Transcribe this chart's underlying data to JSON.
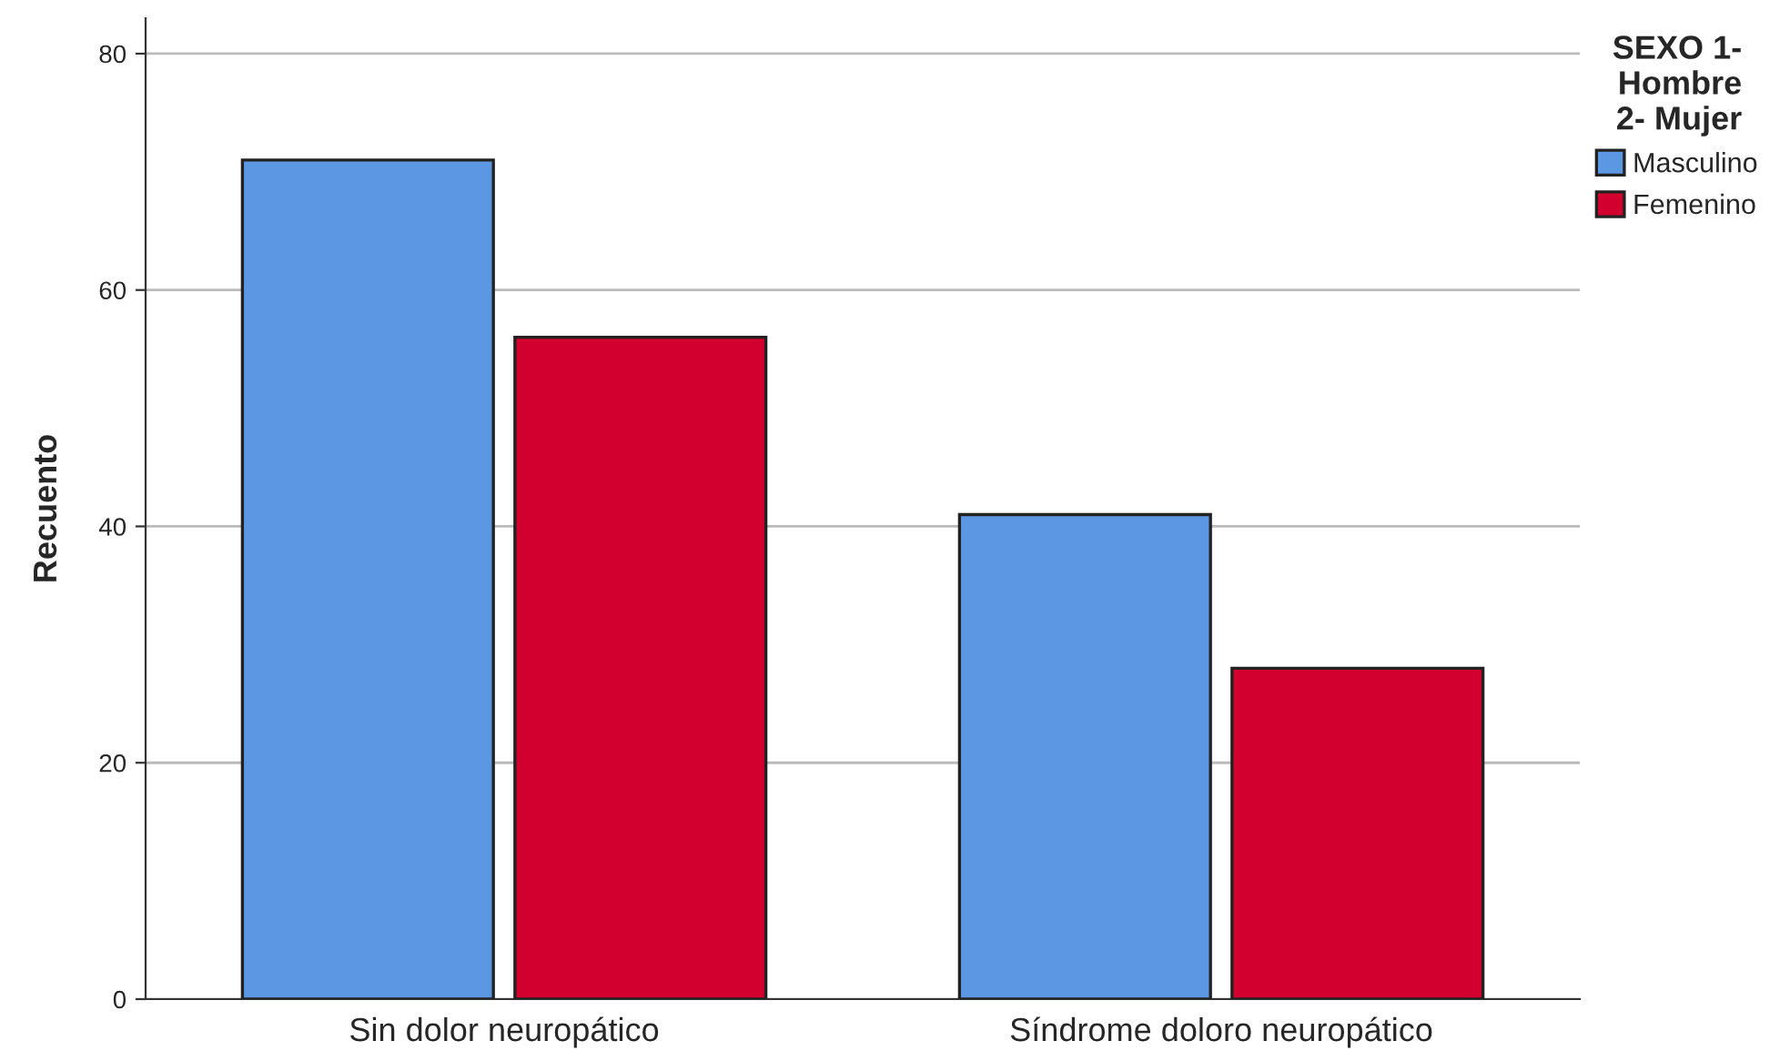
{
  "chart_data": {
    "type": "bar",
    "ylabel": "Recuento",
    "legend_title": "SEXO 1-\nHombre\n2- Mujer",
    "categories": [
      "Sin dolor neuropático",
      "Síndrome doloro neuropático"
    ],
    "series": [
      {
        "name": "Masculino",
        "color": "#5b97e2",
        "values": [
          71,
          41
        ]
      },
      {
        "name": "Femenino",
        "color": "#d2002f",
        "values": [
          56,
          28
        ]
      }
    ],
    "ylim": [
      0,
      83
    ],
    "yticks": [
      0,
      20,
      40,
      60,
      80
    ],
    "grid": "y",
    "legend": "top right"
  }
}
